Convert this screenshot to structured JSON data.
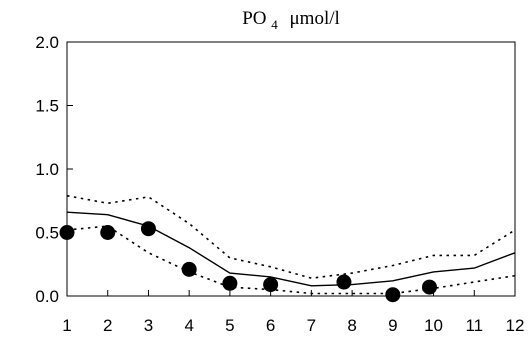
{
  "chart_data": {
    "type": "line",
    "title": "PO4  μmol/l",
    "title_parts": {
      "main": "PO",
      "subscript": "4",
      "unit": "μmol/l"
    },
    "xlabel": "",
    "ylabel": "",
    "xlim": [
      1,
      12
    ],
    "ylim": [
      0,
      2.0
    ],
    "x_ticks": [
      "1",
      "2",
      "3",
      "4",
      "5",
      "6",
      "7",
      "8",
      "9",
      "10",
      "11",
      "12"
    ],
    "y_ticks": [
      "0.0",
      "0.5",
      "1.0",
      "1.5",
      "2.0"
    ],
    "grid": false,
    "legend": "none",
    "series": [
      {
        "style": "solid",
        "x": [
          1,
          2,
          3,
          4,
          5,
          6,
          7,
          8,
          9,
          10,
          11,
          12
        ],
        "y": [
          0.66,
          0.64,
          0.55,
          0.38,
          0.18,
          0.15,
          0.08,
          0.09,
          0.12,
          0.19,
          0.22,
          0.34
        ]
      },
      {
        "style": "dotted",
        "x": [
          1,
          2,
          3,
          4,
          5,
          6,
          7,
          8,
          9,
          10,
          11,
          12
        ],
        "y": [
          0.79,
          0.73,
          0.78,
          0.57,
          0.3,
          0.23,
          0.14,
          0.18,
          0.24,
          0.32,
          0.32,
          0.52
        ]
      },
      {
        "style": "dotted",
        "x": [
          1,
          2,
          3,
          4,
          5,
          6,
          7,
          8,
          9,
          10,
          11,
          12
        ],
        "y": [
          0.52,
          0.55,
          0.34,
          0.19,
          0.07,
          0.05,
          0.02,
          0.02,
          0.02,
          0.06,
          0.11,
          0.16
        ]
      },
      {
        "style": "markers",
        "x": [
          1,
          2,
          3,
          4,
          5,
          6,
          7.8,
          9,
          9.9
        ],
        "y": [
          0.5,
          0.5,
          0.53,
          0.21,
          0.1,
          0.09,
          0.11,
          0.01,
          0.07
        ]
      }
    ]
  }
}
